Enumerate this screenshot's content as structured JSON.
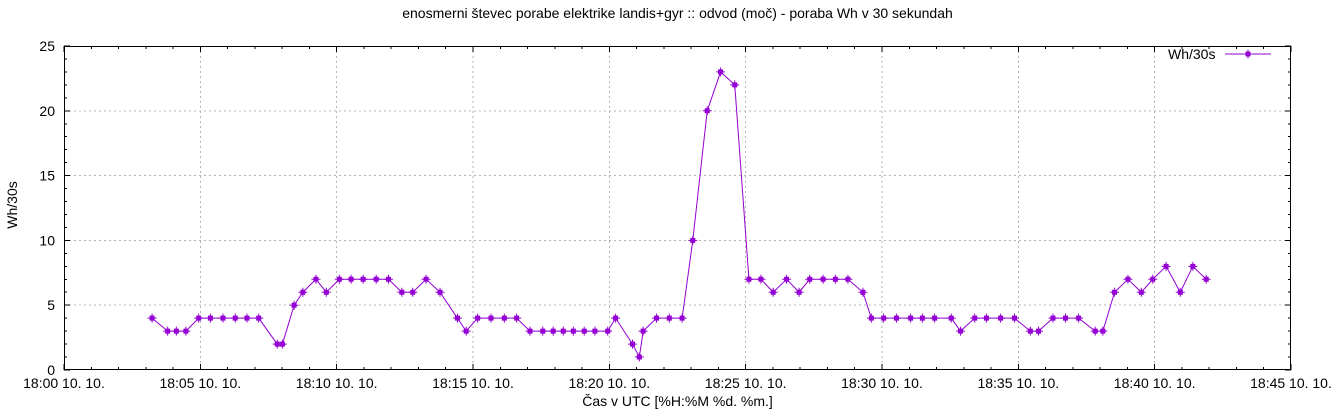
{
  "chart_data": {
    "type": "line",
    "title": "enosmerni števec porabe elektrike landis+gyr :: odvod (moč) - poraba Wh v 30 sekundah",
    "xlabel": "Čas v UTC [%H:%M %d. %m.]",
    "ylabel": "Wh/30s",
    "grid": true,
    "legend_position": "top-right-inside",
    "x_axis": {
      "unit": "minutes after 18:00 UTC",
      "range": [
        0,
        45
      ],
      "major_tick_step": 5,
      "minor_tick_step": 1,
      "tick_labels": [
        "18:00 10. 10.",
        "18:05 10. 10.",
        "18:10 10. 10.",
        "18:15 10. 10.",
        "18:20 10. 10.",
        "18:25 10. 10.",
        "18:30 10. 10.",
        "18:35 10. 10.",
        "18:40 10. 10.",
        "18:45 10. 10."
      ]
    },
    "y_axis": {
      "range": [
        0,
        25
      ],
      "major_tick_step": 5,
      "minor_tick_step": 1,
      "tick_labels": [
        "0",
        "5",
        "10",
        "15",
        "20",
        "25"
      ]
    },
    "colors": {
      "series": "#9400d3",
      "grid": "#b4b4b4",
      "border": "#000000",
      "background": "#ffffff",
      "text": "#000000"
    },
    "series": [
      {
        "name": "Wh/30s",
        "color": "#9400d3",
        "marker": "square-plus",
        "points": [
          [
            3.23,
            4
          ],
          [
            3.8,
            3
          ],
          [
            4.12,
            3
          ],
          [
            4.47,
            3
          ],
          [
            4.94,
            4
          ],
          [
            5.37,
            4
          ],
          [
            5.83,
            4
          ],
          [
            6.28,
            4
          ],
          [
            6.71,
            4
          ],
          [
            7.14,
            4
          ],
          [
            7.82,
            2
          ],
          [
            8.01,
            2
          ],
          [
            8.44,
            5
          ],
          [
            8.76,
            6
          ],
          [
            9.24,
            7
          ],
          [
            9.62,
            6
          ],
          [
            10.1,
            7
          ],
          [
            10.53,
            7
          ],
          [
            10.97,
            7
          ],
          [
            11.45,
            7
          ],
          [
            11.9,
            7
          ],
          [
            12.39,
            6
          ],
          [
            12.79,
            6
          ],
          [
            13.28,
            7
          ],
          [
            13.79,
            6
          ],
          [
            14.43,
            4
          ],
          [
            14.75,
            3
          ],
          [
            15.17,
            4
          ],
          [
            15.66,
            4
          ],
          [
            16.15,
            4
          ],
          [
            16.6,
            4
          ],
          [
            17.09,
            3
          ],
          [
            17.56,
            3
          ],
          [
            17.94,
            3
          ],
          [
            18.31,
            3
          ],
          [
            18.68,
            3
          ],
          [
            19.08,
            3
          ],
          [
            19.47,
            3
          ],
          [
            19.94,
            3
          ],
          [
            20.23,
            4
          ],
          [
            20.85,
            2
          ],
          [
            21.1,
            1
          ],
          [
            21.24,
            3
          ],
          [
            21.73,
            4
          ],
          [
            22.2,
            4
          ],
          [
            22.67,
            4
          ],
          [
            23.06,
            10
          ],
          [
            23.59,
            20
          ],
          [
            24.08,
            23
          ],
          [
            24.6,
            22
          ],
          [
            25.12,
            7
          ],
          [
            25.56,
            7
          ],
          [
            26.01,
            6
          ],
          [
            26.5,
            7
          ],
          [
            26.96,
            6
          ],
          [
            27.35,
            7
          ],
          [
            27.84,
            7
          ],
          [
            28.29,
            7
          ],
          [
            28.75,
            7
          ],
          [
            29.3,
            6
          ],
          [
            29.61,
            4
          ],
          [
            30.06,
            4
          ],
          [
            30.53,
            4
          ],
          [
            31.05,
            4
          ],
          [
            31.48,
            4
          ],
          [
            31.93,
            4
          ],
          [
            32.54,
            4
          ],
          [
            32.88,
            3
          ],
          [
            33.4,
            4
          ],
          [
            33.83,
            4
          ],
          [
            34.35,
            4
          ],
          [
            34.86,
            4
          ],
          [
            35.44,
            3
          ],
          [
            35.74,
            3
          ],
          [
            36.27,
            4
          ],
          [
            36.73,
            4
          ],
          [
            37.21,
            4
          ],
          [
            37.82,
            3
          ],
          [
            38.1,
            3
          ],
          [
            38.53,
            6
          ],
          [
            39.02,
            7
          ],
          [
            39.51,
            6
          ],
          [
            39.93,
            7
          ],
          [
            40.42,
            8
          ],
          [
            40.94,
            6
          ],
          [
            41.4,
            8
          ],
          [
            41.89,
            7
          ]
        ]
      }
    ]
  }
}
